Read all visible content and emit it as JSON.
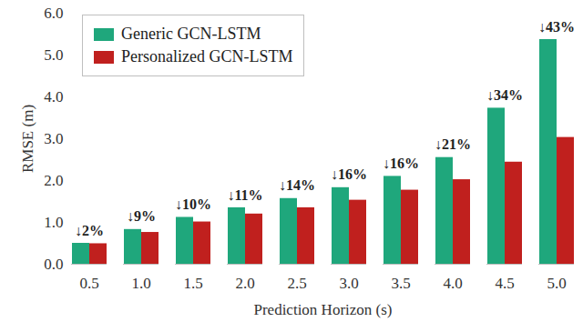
{
  "chart_data": {
    "type": "bar",
    "categories": [
      "0.5",
      "1.0",
      "1.5",
      "2.0",
      "2.5",
      "3.0",
      "3.5",
      "4.0",
      "4.5",
      "5.0"
    ],
    "series": [
      {
        "name": "Generic GCN-LSTM",
        "color": "#1fa77c",
        "values": [
          0.5,
          0.83,
          1.12,
          1.35,
          1.57,
          1.83,
          2.1,
          2.55,
          3.73,
          5.37
        ]
      },
      {
        "name": "Personalized GCN-LSTM",
        "color": "#c0201e",
        "values": [
          0.49,
          0.76,
          1.01,
          1.2,
          1.35,
          1.53,
          1.77,
          2.02,
          2.44,
          3.03
        ]
      }
    ],
    "annotations": [
      "↓2%",
      "↓9%",
      "↓10%",
      "↓11%",
      "↓14%",
      "↓16%",
      "↓16%",
      "↓21%",
      "↓34%",
      "↓43%"
    ],
    "x_label": "Prediction Horizon (s)",
    "y_label": "RMSE (m)",
    "ylim": [
      0,
      6
    ],
    "yticks": [
      {
        "value": 0,
        "label": "0.0"
      },
      {
        "value": 1,
        "label": "1.0"
      },
      {
        "value": 2,
        "label": "2.0"
      },
      {
        "value": 3,
        "label": "3.0"
      },
      {
        "value": 4,
        "label": "4.0"
      },
      {
        "value": 5,
        "label": "5.0"
      },
      {
        "value": 6,
        "label": "6.0"
      }
    ],
    "legend": "top-left",
    "grid": false,
    "data_labels": false
  }
}
